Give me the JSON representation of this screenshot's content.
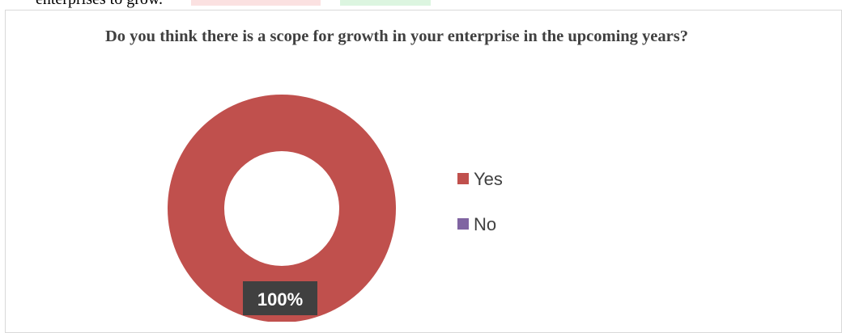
{
  "document": {
    "previous_text": "enterprises to grow."
  },
  "chart_data": {
    "type": "pie",
    "title": "Do you think there is a scope for growth in your enterprise in the upcoming years?",
    "categories": [
      "Yes",
      "No"
    ],
    "values": [
      100,
      0
    ],
    "data_labels": [
      "100%",
      ""
    ],
    "colors": [
      "#c0504d",
      "#8064a2"
    ],
    "legend_position": "right"
  }
}
